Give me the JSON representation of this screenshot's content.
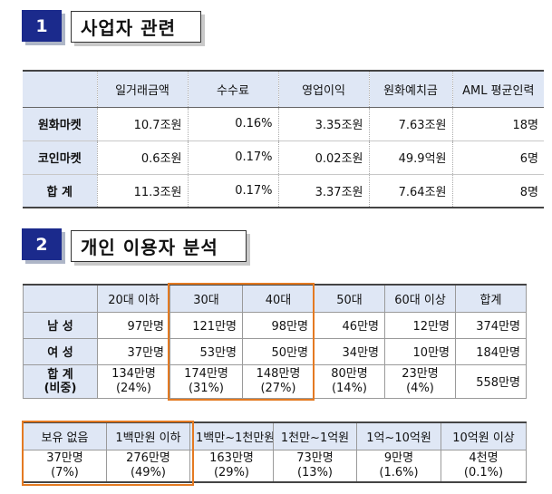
{
  "section1": {
    "number": "1",
    "title": "사업자 관련",
    "headers": [
      "",
      "일거래금액",
      "수수료",
      "영업이익",
      "원화예치금",
      "AML 평균인력"
    ],
    "rows": [
      {
        "label": "원화마켓",
        "cells": [
          "10.7조원",
          "0.16%",
          "3.35조원",
          "7.63조원",
          "18명"
        ]
      },
      {
        "label": "코인마켓",
        "cells": [
          "0.6조원",
          "0.17%",
          "0.02조원",
          "49.9억원",
          "6명"
        ]
      },
      {
        "label": "합 계",
        "cells": [
          "11.3조원",
          "0.17%",
          "3.37조원",
          "7.64조원",
          "8명"
        ]
      }
    ]
  },
  "section2": {
    "number": "2",
    "title": "개인 이용자 분석",
    "age_table": {
      "headers": [
        "",
        "20대 이하",
        "30대",
        "40대",
        "50대",
        "60대 이상",
        "합계"
      ],
      "rows": [
        {
          "label": "남 성",
          "cells": [
            "97만명",
            "121만명",
            "98만명",
            "46만명",
            "12만명",
            "374만명"
          ]
        },
        {
          "label": "여 성",
          "cells": [
            "37만명",
            "53만명",
            "50만명",
            "34만명",
            "10만명",
            "184만명"
          ]
        }
      ],
      "total_label_1": "합 계",
      "total_label_2": "(비중)",
      "total_cells": [
        {
          "value": "134만명",
          "share": "(24%)"
        },
        {
          "value": "174만명",
          "share": "(31%)"
        },
        {
          "value": "148만명",
          "share": "(27%)"
        },
        {
          "value": "80만명",
          "share": "(14%)"
        },
        {
          "value": "23만명",
          "share": "(4%)"
        }
      ],
      "grand_total": "558만명"
    },
    "holding_table": {
      "headers": [
        "보유 없음",
        "1백만원 이하",
        "1백만~1천만원",
        "1천만~1억원",
        "1억~10억원",
        "10억원 이상"
      ],
      "cells": [
        {
          "value": "37만명",
          "share": "(7%)"
        },
        {
          "value": "276만명",
          "share": "(49%)"
        },
        {
          "value": "163만명",
          "share": "(29%)"
        },
        {
          "value": "73만명",
          "share": "(13%)"
        },
        {
          "value": "9만명",
          "share": "(1.6%)"
        },
        {
          "value": "4천명",
          "share": "(0.1%)"
        }
      ]
    },
    "highlight_color": "#e47a22"
  }
}
